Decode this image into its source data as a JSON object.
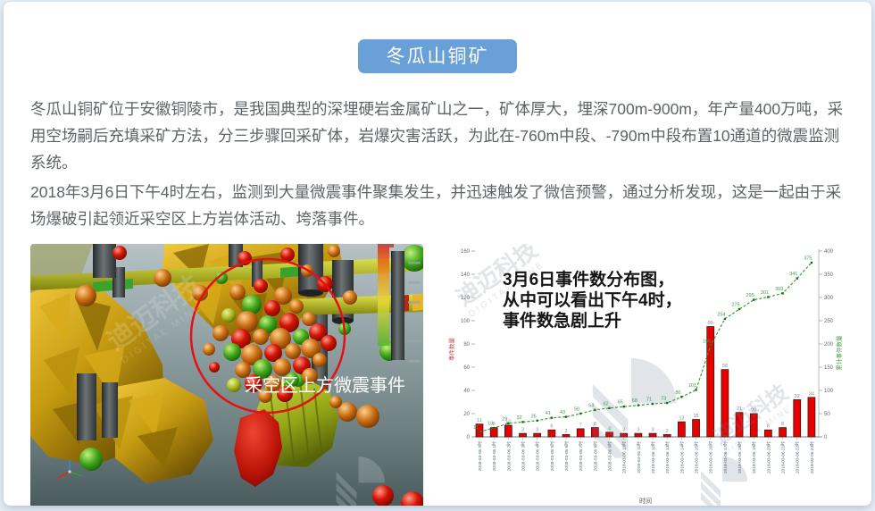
{
  "header": {
    "button_label": "冬瓜山铜矿"
  },
  "paragraphs": [
    "冬瓜山铜矿位于安徽铜陵市，是我国典型的深埋硬岩金属矿山之一，矿体厚大，埋深700m-900m，年产量400万吨，采用空场嗣后充填采矿方法，分三步骤回采矿体，岩爆灾害活跃，为此在-760m中段、-790m中段布置10通道的微震监测系统。",
    "2018年3月6日下午4时左右，监测到大量微震事件聚集发生，并迅速触发了微信预警，通过分析发现，这是一起由于采场爆破引起领近采空区上方岩体活动、垮落事件。"
  ],
  "viewer3d": {
    "caption": "采空区上方微震事件",
    "watermark_cn": "迪迈科技",
    "watermark_en": "DIGITAL MINE"
  },
  "chart_data": {
    "type": "bar",
    "combo": "bar + cumulative dashed line",
    "annotation": [
      "3月6日事件数分布图，",
      "从中可以看出下午4时，",
      "事件数急剧上升"
    ],
    "categories": [
      "2018-03-06 0时",
      "2018-03-06 1时",
      "2018-03-06 2时",
      "2018-03-06 3时",
      "2018-03-06 4时",
      "2018-03-06 5时",
      "2018-03-06 6时",
      "2018-03-06 7时",
      "2018-03-06 8时",
      "2018-03-06 9时",
      "2018-03-06 10时",
      "2018-03-06 11时",
      "2018-03-06 12时",
      "2018-03-06 13时",
      "2018-03-06 14时",
      "2018-03-06 15时",
      "2018-03-06 16时",
      "2018-03-06 17时",
      "2018-03-06 18时",
      "2018-03-06 19时",
      "2018-03-06 20时",
      "2018-03-06 21时",
      "2018-03-06 22时",
      "2018-03-06 23时"
    ],
    "series": [
      {
        "name": "事件数量",
        "type": "bar",
        "axis": "left",
        "color": "#e80000",
        "values": [
          11,
          8,
          10,
          3,
          3,
          6,
          2,
          7,
          8,
          4,
          3,
          3,
          3,
          2,
          13,
          15,
          95,
          58,
          21,
          20,
          6,
          8,
          32,
          34
        ]
      },
      {
        "name": "累计事件数量",
        "type": "line",
        "axis": "right",
        "color": "#3aa035",
        "dashed": true,
        "values": [
          11,
          19,
          29,
          32,
          35,
          41,
          43,
          50,
          58,
          62,
          65,
          68,
          71,
          73,
          86,
          101,
          196,
          254,
          275,
          295,
          301,
          309,
          341,
          375
        ]
      }
    ],
    "xlabel": "时间",
    "ylabel_left": "事件数量",
    "ylabel_right": "累计事件数量",
    "ylim_left": [
      0,
      160
    ],
    "ylim_right": [
      0,
      400
    ],
    "ytick_step_left": 20,
    "ytick_step_right": 50,
    "grid": false,
    "legend_position": "none"
  },
  "colors": {
    "accent_blue": "#6aa0d8",
    "bar_red": "#e80000",
    "line_green": "#3aa035",
    "highlight_circle": "#e51010",
    "ylabel_left_color": "#c0504d",
    "ylabel_right_color": "#48a148"
  }
}
